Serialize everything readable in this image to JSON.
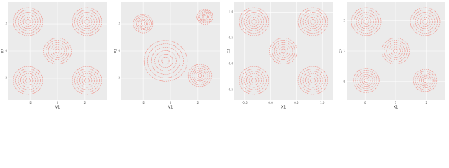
{
  "chart_data": [
    {
      "type": "contour",
      "x_label": "V1",
      "y_label": "V2",
      "color": "#f08a80",
      "grid": true,
      "xlim": [
        -3.6,
        3.6
      ],
      "ylim": [
        -3.6,
        3.6
      ],
      "xticks": [
        -2,
        0,
        2
      ],
      "yticks": [
        -2,
        0,
        2
      ]
    },
    {
      "type": "contour",
      "x_label": "V1",
      "y_label": "V2",
      "color": "#f08a80",
      "grid": true,
      "xlim": [
        -3.6,
        3.6
      ],
      "ylim": [
        -3.6,
        3.6
      ],
      "xticks": [
        -2,
        0,
        2
      ],
      "yticks": [
        -2,
        0,
        2
      ]
    },
    {
      "type": "contour",
      "x_label": "X1",
      "y_label": "X2",
      "color": "#f08a80",
      "grid": true,
      "xlim": [
        -0.7,
        1.2
      ],
      "ylim": [
        -0.7,
        1.2
      ],
      "xticks": [
        -0.5,
        {
          "value": 0,
          "label": "0.0"
        },
        0.5,
        {
          "value": 1,
          "label": "1.0"
        }
      ],
      "yticks": [
        -0.5,
        {
          "value": 0,
          "label": "0.0"
        },
        0.5,
        {
          "value": 1,
          "label": "1.0"
        }
      ]
    },
    {
      "type": "contour",
      "x_label": "X1",
      "y_label": "X2",
      "color": "#f08a80",
      "grid": true,
      "xlim": [
        -0.6,
        2.6
      ],
      "ylim": [
        -0.6,
        2.6
      ],
      "xticks": [
        0,
        1,
        2
      ],
      "yticks": [
        0,
        1,
        2
      ]
    }
  ]
}
